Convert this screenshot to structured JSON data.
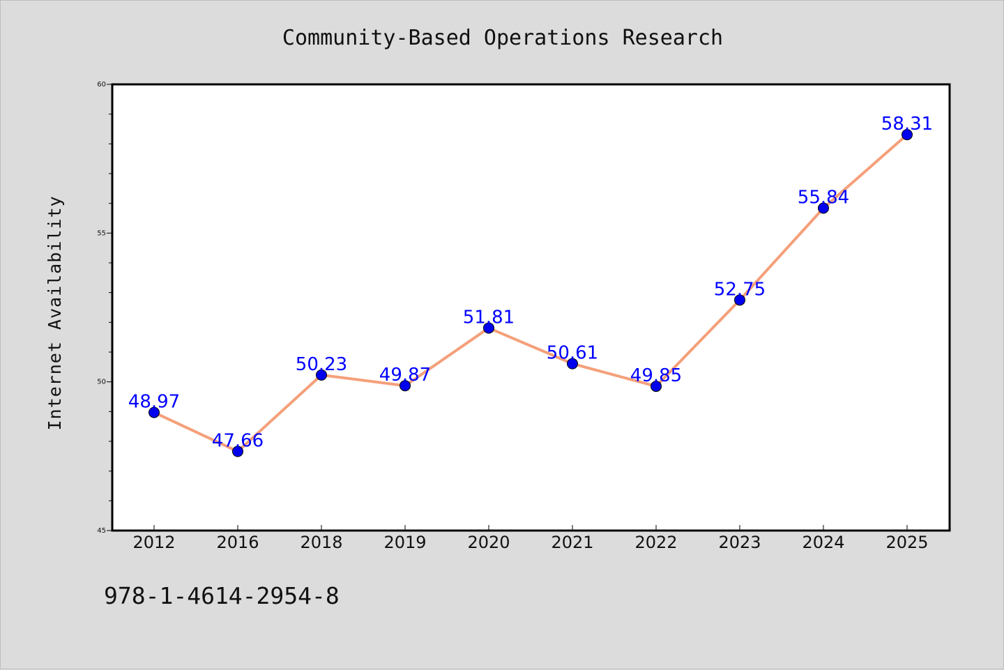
{
  "chart_data": {
    "type": "line",
    "title": "Community-Based Operations Research",
    "xlabel": "",
    "ylabel": "Internet Availability",
    "categories": [
      "2012",
      "2016",
      "2018",
      "2019",
      "2020",
      "2021",
      "2022",
      "2023",
      "2024",
      "2025"
    ],
    "series": [
      {
        "values": [
          48.97,
          47.66,
          50.23,
          49.87,
          51.81,
          50.61,
          49.85,
          52.75,
          55.84,
          58.31
        ],
        "line_color": "#f4a07a",
        "marker_color": "#0000ee",
        "label_color": "#0000ff"
      }
    ],
    "ylim": [
      45,
      60
    ],
    "y_ticks": [
      45,
      50,
      55,
      60
    ],
    "grid": false,
    "data_labels": [
      "48.97",
      "47.66",
      "50.23",
      "49.87",
      "51.81",
      "50.61",
      "49.85",
      "52.75",
      "55.84",
      "58.31"
    ]
  },
  "footer_text": "978-1-4614-2954-8",
  "colors": {
    "background": "#dcdcdc",
    "plot_background": "#ffffff",
    "axis": "#000000"
  }
}
